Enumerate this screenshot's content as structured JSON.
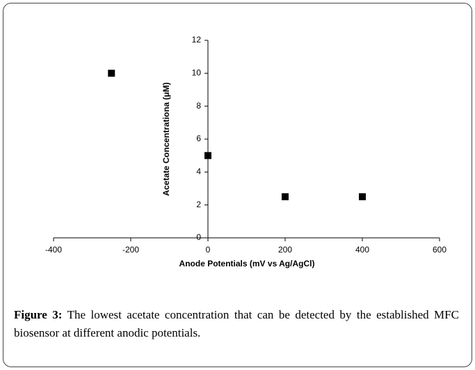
{
  "chart_data": {
    "type": "scatter",
    "x_label": "Anode Potentials (mV vs Ag/AgCl)",
    "y_label": "Acetate Concentrationa  (μM)",
    "x": [
      -250,
      0,
      200,
      400
    ],
    "values": [
      10,
      5,
      2.5,
      2.5
    ],
    "color": "#000000",
    "xlim": [
      -400,
      600
    ],
    "xticks": [
      -400,
      -200,
      0,
      200,
      400,
      600
    ],
    "ylim": [
      0,
      12
    ],
    "yticks": [
      0,
      2,
      4,
      6,
      8,
      10,
      12
    ]
  },
  "caption": {
    "label": "Figure 3:",
    "text": "The lowest acetate concentration that can be detected by the established MFC biosensor at different anodic potentials."
  }
}
